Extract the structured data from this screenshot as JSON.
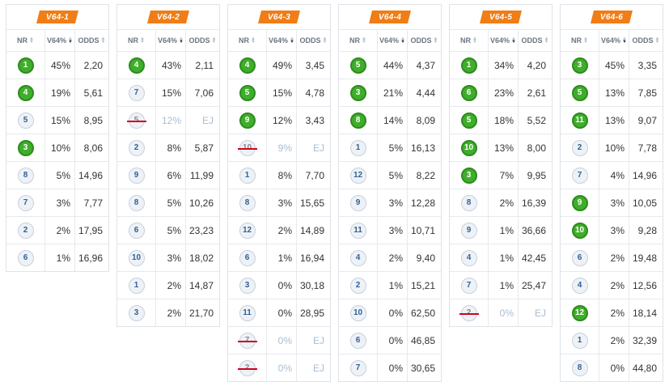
{
  "columns": {
    "nr": "NR",
    "pct": "V64%",
    "odds": "ODDS"
  },
  "races": [
    {
      "title": "V64-1",
      "rows": [
        {
          "nr": "1",
          "pct": "45%",
          "odds": "2,20",
          "status": "selected"
        },
        {
          "nr": "4",
          "pct": "19%",
          "odds": "5,61",
          "status": "selected"
        },
        {
          "nr": "5",
          "pct": "15%",
          "odds": "8,95",
          "status": "normal"
        },
        {
          "nr": "3",
          "pct": "10%",
          "odds": "8,06",
          "status": "selected"
        },
        {
          "nr": "8",
          "pct": "5%",
          "odds": "14,96",
          "status": "normal"
        },
        {
          "nr": "7",
          "pct": "3%",
          "odds": "7,77",
          "status": "normal"
        },
        {
          "nr": "2",
          "pct": "2%",
          "odds": "17,95",
          "status": "normal"
        },
        {
          "nr": "6",
          "pct": "1%",
          "odds": "16,96",
          "status": "normal"
        }
      ]
    },
    {
      "title": "V64-2",
      "rows": [
        {
          "nr": "4",
          "pct": "43%",
          "odds": "2,11",
          "status": "selected"
        },
        {
          "nr": "7",
          "pct": "15%",
          "odds": "7,06",
          "status": "normal"
        },
        {
          "nr": "5",
          "pct": "12%",
          "odds": "EJ",
          "status": "scratched"
        },
        {
          "nr": "2",
          "pct": "8%",
          "odds": "5,87",
          "status": "normal"
        },
        {
          "nr": "9",
          "pct": "6%",
          "odds": "11,99",
          "status": "normal"
        },
        {
          "nr": "8",
          "pct": "5%",
          "odds": "10,26",
          "status": "normal"
        },
        {
          "nr": "6",
          "pct": "5%",
          "odds": "23,23",
          "status": "normal"
        },
        {
          "nr": "10",
          "pct": "3%",
          "odds": "18,02",
          "status": "normal"
        },
        {
          "nr": "1",
          "pct": "2%",
          "odds": "14,87",
          "status": "normal"
        },
        {
          "nr": "3",
          "pct": "2%",
          "odds": "21,70",
          "status": "normal"
        }
      ]
    },
    {
      "title": "V64-3",
      "rows": [
        {
          "nr": "4",
          "pct": "49%",
          "odds": "3,45",
          "status": "selected"
        },
        {
          "nr": "5",
          "pct": "15%",
          "odds": "4,78",
          "status": "selected"
        },
        {
          "nr": "9",
          "pct": "12%",
          "odds": "3,43",
          "status": "selected"
        },
        {
          "nr": "10",
          "pct": "9%",
          "odds": "EJ",
          "status": "scratched"
        },
        {
          "nr": "1",
          "pct": "8%",
          "odds": "7,70",
          "status": "normal"
        },
        {
          "nr": "8",
          "pct": "3%",
          "odds": "15,65",
          "status": "normal"
        },
        {
          "nr": "12",
          "pct": "2%",
          "odds": "14,89",
          "status": "normal"
        },
        {
          "nr": "6",
          "pct": "1%",
          "odds": "16,94",
          "status": "normal"
        },
        {
          "nr": "3",
          "pct": "0%",
          "odds": "30,18",
          "status": "normal"
        },
        {
          "nr": "11",
          "pct": "0%",
          "odds": "28,95",
          "status": "normal"
        },
        {
          "nr": "7",
          "pct": "0%",
          "odds": "EJ",
          "status": "scratched"
        },
        {
          "nr": "2",
          "pct": "0%",
          "odds": "EJ",
          "status": "scratched"
        }
      ]
    },
    {
      "title": "V64-4",
      "rows": [
        {
          "nr": "5",
          "pct": "44%",
          "odds": "4,37",
          "status": "selected"
        },
        {
          "nr": "3",
          "pct": "21%",
          "odds": "4,44",
          "status": "selected"
        },
        {
          "nr": "8",
          "pct": "14%",
          "odds": "8,09",
          "status": "selected"
        },
        {
          "nr": "1",
          "pct": "5%",
          "odds": "16,13",
          "status": "normal"
        },
        {
          "nr": "12",
          "pct": "5%",
          "odds": "8,22",
          "status": "normal"
        },
        {
          "nr": "9",
          "pct": "3%",
          "odds": "12,28",
          "status": "normal"
        },
        {
          "nr": "11",
          "pct": "3%",
          "odds": "10,71",
          "status": "normal"
        },
        {
          "nr": "4",
          "pct": "2%",
          "odds": "9,40",
          "status": "normal"
        },
        {
          "nr": "2",
          "pct": "1%",
          "odds": "15,21",
          "status": "normal"
        },
        {
          "nr": "10",
          "pct": "0%",
          "odds": "62,50",
          "status": "normal"
        },
        {
          "nr": "6",
          "pct": "0%",
          "odds": "46,85",
          "status": "normal"
        },
        {
          "nr": "7",
          "pct": "0%",
          "odds": "30,65",
          "status": "normal"
        }
      ]
    },
    {
      "title": "V64-5",
      "rows": [
        {
          "nr": "1",
          "pct": "34%",
          "odds": "4,20",
          "status": "selected"
        },
        {
          "nr": "6",
          "pct": "23%",
          "odds": "2,61",
          "status": "selected"
        },
        {
          "nr": "5",
          "pct": "18%",
          "odds": "5,52",
          "status": "selected"
        },
        {
          "nr": "10",
          "pct": "13%",
          "odds": "8,00",
          "status": "selected"
        },
        {
          "nr": "3",
          "pct": "7%",
          "odds": "9,95",
          "status": "selected"
        },
        {
          "nr": "8",
          "pct": "2%",
          "odds": "16,39",
          "status": "normal"
        },
        {
          "nr": "9",
          "pct": "1%",
          "odds": "36,66",
          "status": "normal"
        },
        {
          "nr": "4",
          "pct": "1%",
          "odds": "42,45",
          "status": "normal"
        },
        {
          "nr": "7",
          "pct": "1%",
          "odds": "25,47",
          "status": "normal"
        },
        {
          "nr": "2",
          "pct": "0%",
          "odds": "EJ",
          "status": "scratched"
        }
      ]
    },
    {
      "title": "V64-6",
      "rows": [
        {
          "nr": "3",
          "pct": "45%",
          "odds": "3,35",
          "status": "selected"
        },
        {
          "nr": "5",
          "pct": "13%",
          "odds": "7,85",
          "status": "selected"
        },
        {
          "nr": "11",
          "pct": "13%",
          "odds": "9,07",
          "status": "selected"
        },
        {
          "nr": "2",
          "pct": "10%",
          "odds": "7,78",
          "status": "normal"
        },
        {
          "nr": "7",
          "pct": "4%",
          "odds": "14,96",
          "status": "normal"
        },
        {
          "nr": "9",
          "pct": "3%",
          "odds": "10,05",
          "status": "selected"
        },
        {
          "nr": "10",
          "pct": "3%",
          "odds": "9,28",
          "status": "selected"
        },
        {
          "nr": "6",
          "pct": "2%",
          "odds": "19,48",
          "status": "normal"
        },
        {
          "nr": "4",
          "pct": "2%",
          "odds": "12,56",
          "status": "normal"
        },
        {
          "nr": "12",
          "pct": "2%",
          "odds": "18,14",
          "status": "selected"
        },
        {
          "nr": "1",
          "pct": "2%",
          "odds": "32,39",
          "status": "normal"
        },
        {
          "nr": "8",
          "pct": "0%",
          "odds": "44,80",
          "status": "normal"
        }
      ]
    }
  ]
}
